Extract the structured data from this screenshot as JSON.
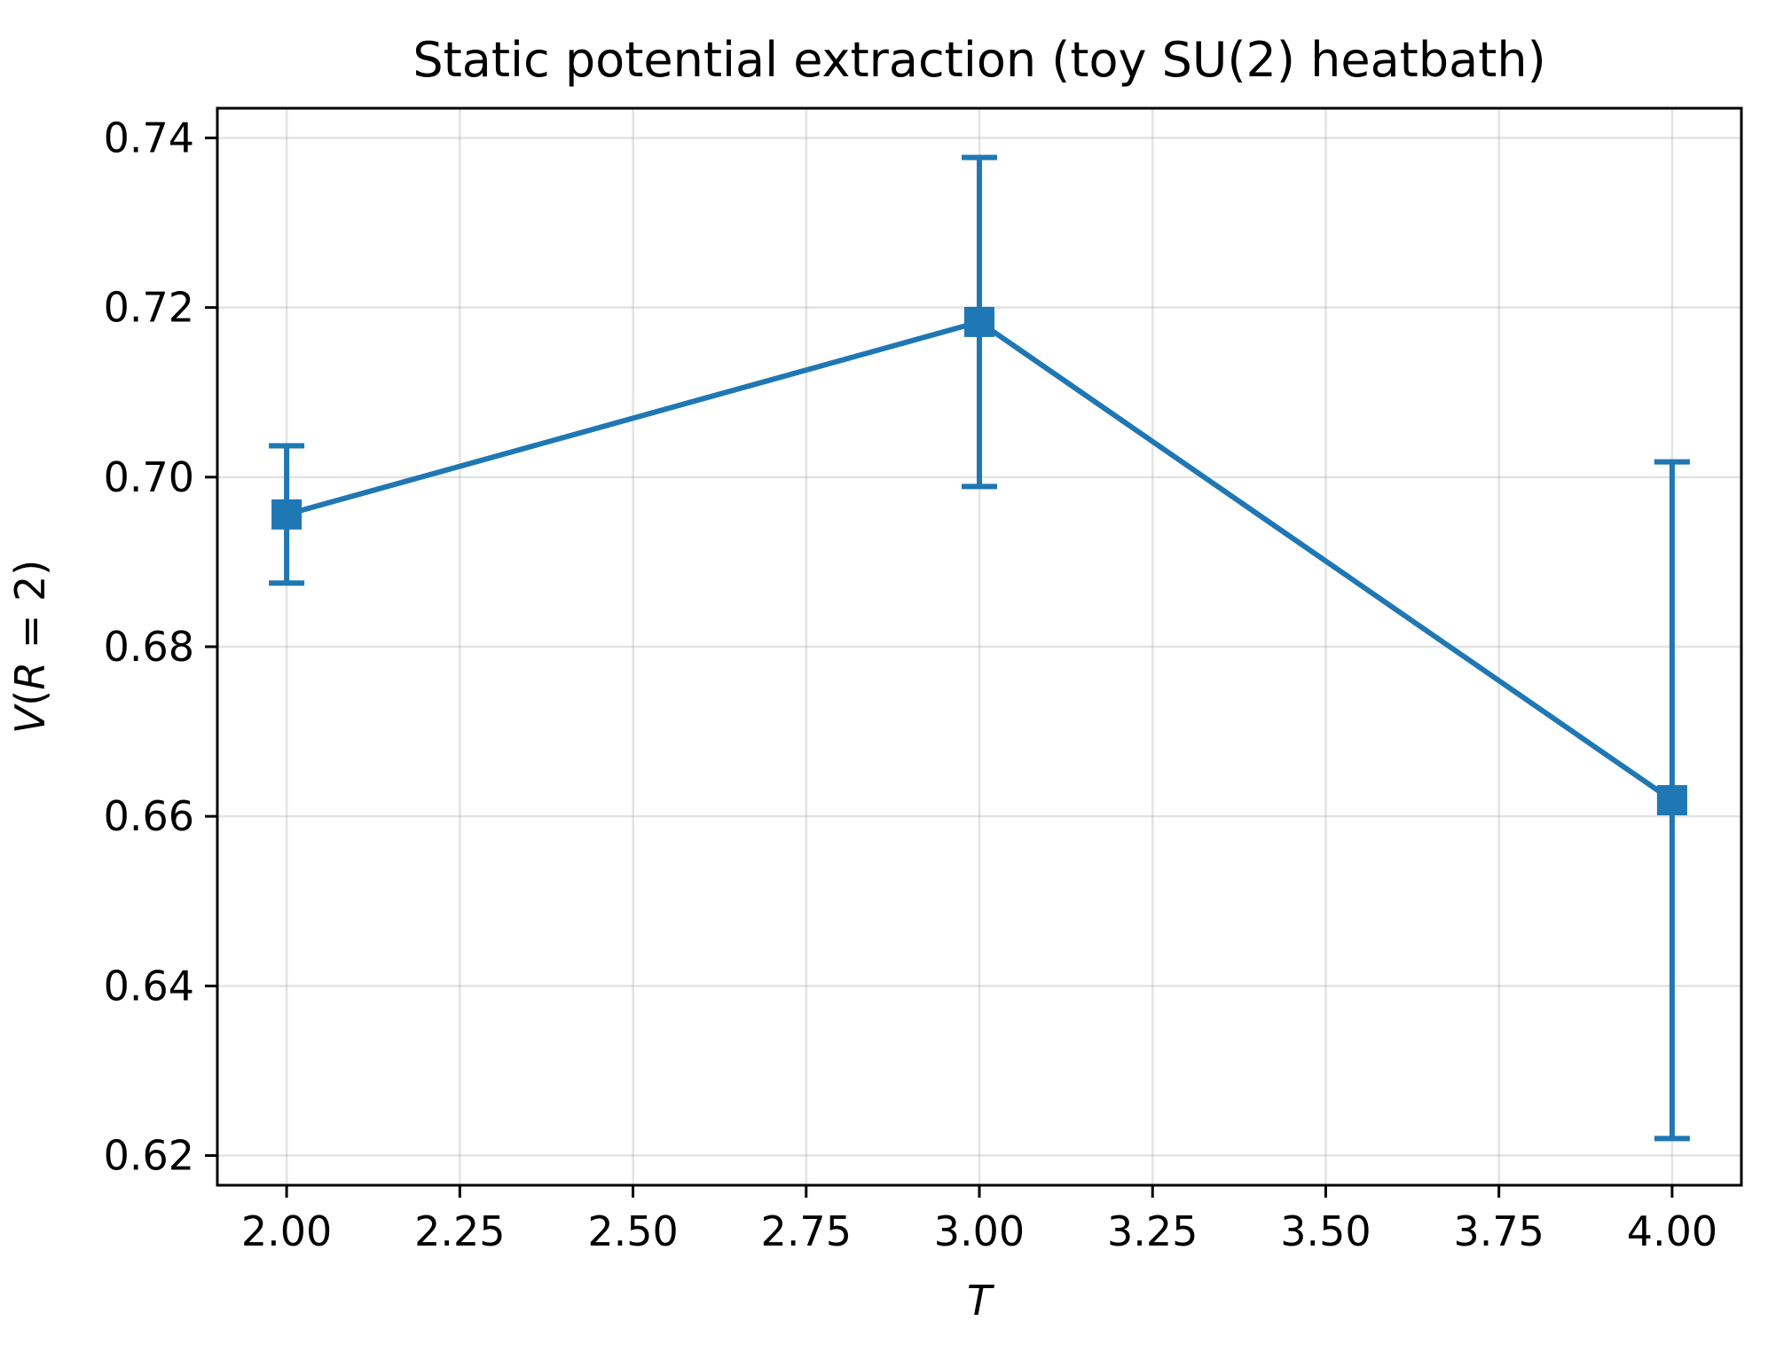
{
  "chart_data": {
    "type": "line",
    "title": "Static potential extraction (toy SU(2) heatbath)",
    "xlabel": "T",
    "ylabel_parts": [
      "V",
      "(",
      "R",
      " = 2)"
    ],
    "xlim": [
      1.9,
      4.1
    ],
    "ylim": [
      0.6165,
      0.7435
    ],
    "xticks": [
      2.0,
      2.25,
      2.5,
      2.75,
      3.0,
      3.25,
      3.5,
      3.75,
      4.0
    ],
    "xtick_labels": [
      "2.00",
      "2.25",
      "2.50",
      "2.75",
      "3.00",
      "3.25",
      "3.50",
      "3.75",
      "4.00"
    ],
    "yticks": [
      0.62,
      0.64,
      0.66,
      0.68,
      0.7,
      0.72,
      0.74
    ],
    "ytick_labels": [
      "0.62",
      "0.64",
      "0.66",
      "0.68",
      "0.70",
      "0.72",
      "0.74"
    ],
    "grid": true,
    "series": [
      {
        "color": "#1f77b4",
        "marker": "square",
        "x": [
          2.0,
          3.0,
          4.0
        ],
        "y": [
          0.6956,
          0.7183,
          0.6619
        ],
        "yerr": [
          0.0081,
          0.0194,
          0.0399
        ]
      }
    ]
  }
}
